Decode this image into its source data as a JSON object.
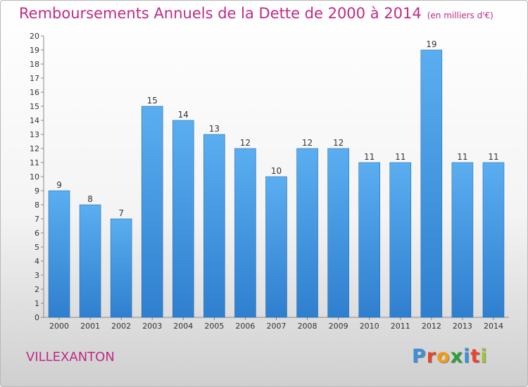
{
  "chart_data": {
    "type": "bar",
    "title": "Remboursements Annuels de la Dette de 2000 à 2014",
    "unit_note": "(en milliers d'€)",
    "categories": [
      "2000",
      "2001",
      "2002",
      "2003",
      "2004",
      "2005",
      "2006",
      "2007",
      "2008",
      "2009",
      "2010",
      "2011",
      "2012",
      "2013",
      "2014"
    ],
    "values": [
      9,
      8,
      7,
      15,
      14,
      13,
      12,
      10,
      12,
      12,
      11,
      11,
      19,
      11,
      11
    ],
    "ylim": [
      0,
      20
    ],
    "yticks": [
      "0",
      "1",
      "2",
      "3",
      "4",
      "5",
      "6",
      "7",
      "8",
      "9",
      "10",
      "11",
      "12",
      "13",
      "14",
      "15",
      "16",
      "17",
      "18",
      "19",
      "20"
    ],
    "xlabel": "",
    "ylabel": "",
    "grid": false,
    "bar_color": "#4a9ee0",
    "text_color": "#c02a86"
  },
  "footer": {
    "commune": "VILLEXANTON",
    "logo_letters": [
      "P",
      "r",
      "o",
      "x",
      "i",
      "t",
      "i"
    ],
    "logo_colors": [
      "#3c8fd8",
      "#e8452c",
      "#f39c12",
      "#2e9e3e",
      "#3c8fd8",
      "#e8452c",
      "#9bc53d"
    ]
  }
}
